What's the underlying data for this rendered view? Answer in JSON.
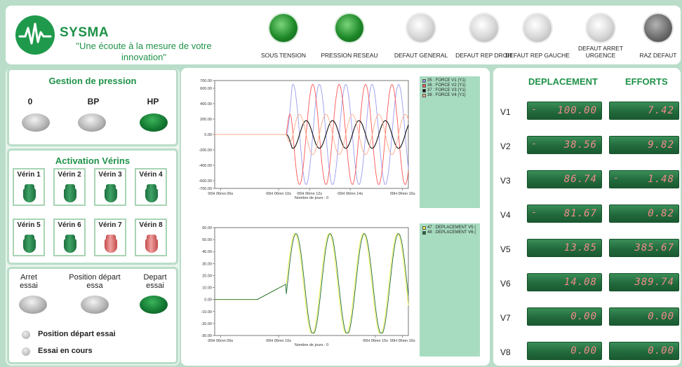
{
  "header": {
    "brand": "SYSMA",
    "slogan": "\"Une écoute à la mesure de votre innovation\"",
    "indicators": [
      {
        "label": "SOUS TENSION",
        "state": "green"
      },
      {
        "label": "PRESSION RESEAU",
        "state": "green"
      },
      {
        "label": "DEFAUT GENERAL",
        "state": "gray"
      },
      {
        "label": "DEFAUT REP DROIT",
        "state": "gray"
      },
      {
        "label": "DEFAUT REP GAUCHE",
        "state": "gray"
      },
      {
        "label": "DEFAUT ARRET URGENCE",
        "state": "gray"
      },
      {
        "label": "RAZ DEFAUT",
        "state": "dark"
      }
    ]
  },
  "pressure": {
    "title": "Gestion de  pression",
    "buttons": [
      {
        "label": "0",
        "state": "gray"
      },
      {
        "label": "BP",
        "state": "gray"
      },
      {
        "label": "HP",
        "state": "green"
      }
    ]
  },
  "verins": {
    "title": "Activation Vérins",
    "items": [
      {
        "label": "Vérin 1",
        "state": "green"
      },
      {
        "label": "Vérin 2",
        "state": "green"
      },
      {
        "label": "Vérin 3",
        "state": "green"
      },
      {
        "label": "Vérin 4",
        "state": "green"
      },
      {
        "label": "Vérin 5",
        "state": "green"
      },
      {
        "label": "Vérin 6",
        "state": "green"
      },
      {
        "label": "Vérin 7",
        "state": "red"
      },
      {
        "label": "Vérin 8",
        "state": "red"
      }
    ]
  },
  "test": {
    "stop_label": "Arret essai",
    "position_label": "Position départ essa",
    "start_label": "Depart essai",
    "status": [
      {
        "label": "Position départ essai"
      },
      {
        "label": "Essai en cours"
      }
    ]
  },
  "chart_data": [
    {
      "type": "line",
      "ylim": [
        -700,
        700
      ],
      "yticks": [
        "700.00",
        "600.00",
        "400.00",
        "200.00",
        "0.00",
        "-200.00",
        "-400.00",
        "-600.00",
        "-700.00"
      ],
      "xticks": [
        "00H 06mn 06s",
        "00H 06mn 10s",
        "00H 06mn 12s",
        "00H 06mn 14s",
        "00H 06mn 16s"
      ],
      "xlabel": "Nombre de jours : 0",
      "series": [
        {
          "name": "35 : FORCE V1 (Y1)",
          "color": "#9a9af0",
          "amplitude": 650
        },
        {
          "name": "36 : FORCE V2 (Y1)",
          "color": "#ff5555",
          "amplitude": 650
        },
        {
          "name": "37 : FORCE V3 (Y1)",
          "color": "#111111",
          "amplitude": 180
        },
        {
          "name": "38 : FORCE V4 (Y1)",
          "color": "#ffaa88",
          "amplitude": 260
        }
      ]
    },
    {
      "type": "line",
      "ylim": [
        -30,
        60
      ],
      "yticks": [
        "60.00",
        "50.00",
        "40.00",
        "30.00",
        "20.00",
        "10.00",
        "0.00",
        "-10.00",
        "-20.00",
        "-30.00"
      ],
      "xticks": [
        "00H 06mn 06s",
        "00H 06mn 10s",
        "00H 06mn 15s",
        "00H 06mn 16s"
      ],
      "xlabel": "Nombre de jours : 0",
      "series": [
        {
          "name": "47 : DEPLACEMENT V5 (",
          "color": "#f2f24a",
          "amplitude": 42
        },
        {
          "name": "48 : DEPLACEMENT V6 (",
          "color": "#1c6b2f",
          "amplitude": 42
        }
      ]
    }
  ],
  "measures": {
    "headers": {
      "deplacement": "DEPLACEMENT",
      "efforts": "EFFORTS"
    },
    "rows": [
      {
        "label": "V1",
        "dep_sign": "-",
        "dep": "100.00",
        "eff_sign": "",
        "eff": "7.42"
      },
      {
        "label": "V2",
        "dep_sign": "-",
        "dep": "38.56",
        "eff_sign": "",
        "eff": "9.82"
      },
      {
        "label": "V3",
        "dep_sign": "",
        "dep": "86.74",
        "eff_sign": "-",
        "eff": "1.48"
      },
      {
        "label": "V4",
        "dep_sign": "-",
        "dep": "81.67",
        "eff_sign": "",
        "eff": "0.82"
      },
      {
        "label": "V5",
        "dep_sign": "",
        "dep": "13.85",
        "eff_sign": "",
        "eff": "385.67"
      },
      {
        "label": "V6",
        "dep_sign": "",
        "dep": "14.08",
        "eff_sign": "",
        "eff": "389.74"
      },
      {
        "label": "V7",
        "dep_sign": "",
        "dep": "0.00",
        "eff_sign": "",
        "eff": "0.00"
      },
      {
        "label": "V8",
        "dep_sign": "",
        "dep": "0.00",
        "eff_sign": "",
        "eff": "0.00"
      }
    ]
  }
}
